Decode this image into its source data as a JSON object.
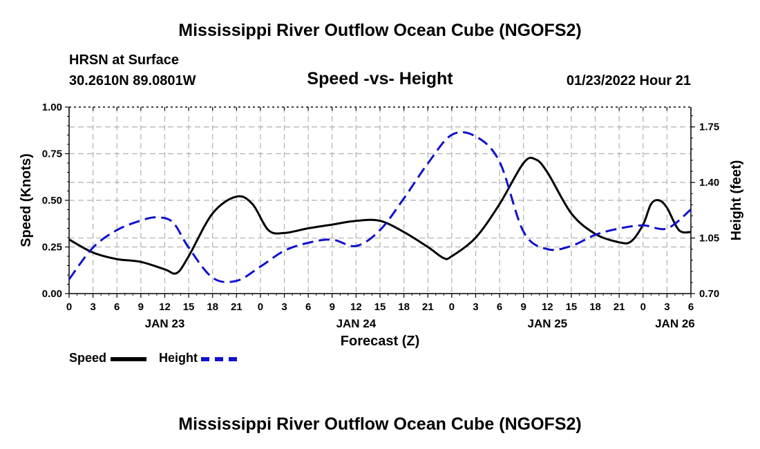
{
  "header": {
    "title": "Mississippi River Outflow Ocean Cube (NGOFS2)",
    "station": "HRSN at Surface",
    "coords": "30.2610N  89.0801W",
    "subtitle": "Speed -vs- Height",
    "datetime": "01/23/2022 Hour 21"
  },
  "footer": {
    "title": "Mississippi River Outflow Ocean Cube (NGOFS2)"
  },
  "legend": {
    "speed_label": "Speed",
    "height_label": "Height"
  },
  "colors": {
    "speed": "#000000",
    "height": "#1010cc",
    "grid": "#b0b0b0"
  },
  "chart_data": {
    "type": "line",
    "xlabel": "Forecast (Z)",
    "ylabel_left": "Speed (Knots)",
    "ylabel_right": "Height (feet)",
    "x_hours_range": [
      0,
      78
    ],
    "ylim_left": [
      0,
      1.0
    ],
    "ylim_right": [
      0.7,
      1.875
    ],
    "yticks_left": [
      "0.00",
      "0.25",
      "0.50",
      "0.75",
      "1.00"
    ],
    "yticks_left_values": [
      0,
      0.25,
      0.5,
      0.75,
      1.0
    ],
    "yticks_right": [
      "0.70",
      "1.05",
      "1.40",
      "1.75"
    ],
    "yticks_right_values": [
      0.7,
      1.05,
      1.4,
      1.75
    ],
    "xtick_hours": [
      0,
      3,
      6,
      9,
      12,
      15,
      18,
      21,
      24,
      27,
      30,
      33,
      36,
      39,
      42,
      45,
      48,
      51,
      54,
      57,
      60,
      63,
      66,
      69,
      72,
      75,
      78
    ],
    "xtick_labels": [
      "0",
      "3",
      "6",
      "9",
      "12",
      "15",
      "18",
      "21",
      "0",
      "3",
      "6",
      "9",
      "12",
      "15",
      "18",
      "21",
      "0",
      "3",
      "6",
      "9",
      "12",
      "15",
      "18",
      "21",
      "0",
      "3",
      "6"
    ],
    "day_labels": [
      {
        "hour": 12,
        "label": "JAN 23"
      },
      {
        "hour": 36,
        "label": "JAN 24"
      },
      {
        "hour": 60,
        "label": "JAN 25"
      },
      {
        "hour": 76,
        "label": "JAN 26"
      }
    ],
    "series": [
      {
        "name": "Speed",
        "axis": "left",
        "style": "solid",
        "points": [
          [
            0,
            0.29
          ],
          [
            3,
            0.22
          ],
          [
            6,
            0.185
          ],
          [
            9,
            0.17
          ],
          [
            12,
            0.13
          ],
          [
            13.5,
            0.11
          ],
          [
            15,
            0.2
          ],
          [
            18,
            0.43
          ],
          [
            21,
            0.52
          ],
          [
            23,
            0.48
          ],
          [
            25,
            0.34
          ],
          [
            27,
            0.325
          ],
          [
            30,
            0.35
          ],
          [
            33,
            0.37
          ],
          [
            36,
            0.39
          ],
          [
            39,
            0.39
          ],
          [
            42,
            0.33
          ],
          [
            45,
            0.25
          ],
          [
            47,
            0.19
          ],
          [
            48,
            0.2
          ],
          [
            51,
            0.3
          ],
          [
            54,
            0.48
          ],
          [
            57,
            0.7
          ],
          [
            58.5,
            0.72
          ],
          [
            60,
            0.65
          ],
          [
            63,
            0.43
          ],
          [
            66,
            0.32
          ],
          [
            69,
            0.275
          ],
          [
            70.5,
            0.28
          ],
          [
            72,
            0.37
          ],
          [
            73,
            0.48
          ],
          [
            74,
            0.5
          ],
          [
            75,
            0.46
          ],
          [
            76.5,
            0.34
          ],
          [
            78,
            0.33
          ]
        ]
      },
      {
        "name": "Height",
        "axis": "right",
        "style": "dashed",
        "points": [
          [
            0,
            0.79
          ],
          [
            3,
            0.99
          ],
          [
            6,
            1.1
          ],
          [
            9,
            1.16
          ],
          [
            11,
            1.18
          ],
          [
            13,
            1.15
          ],
          [
            15,
            0.99
          ],
          [
            18,
            0.8
          ],
          [
            21,
            0.78
          ],
          [
            24,
            0.87
          ],
          [
            27,
            0.97
          ],
          [
            30,
            1.02
          ],
          [
            33,
            1.04
          ],
          [
            36,
            1.0
          ],
          [
            39,
            1.1
          ],
          [
            42,
            1.3
          ],
          [
            45,
            1.52
          ],
          [
            48,
            1.7
          ],
          [
            51,
            1.69
          ],
          [
            54,
            1.53
          ],
          [
            57,
            1.09
          ],
          [
            60,
            0.98
          ],
          [
            63,
            1.0
          ],
          [
            66,
            1.07
          ],
          [
            69,
            1.11
          ],
          [
            72,
            1.13
          ],
          [
            75,
            1.11
          ],
          [
            78,
            1.23
          ]
        ]
      }
    ]
  }
}
